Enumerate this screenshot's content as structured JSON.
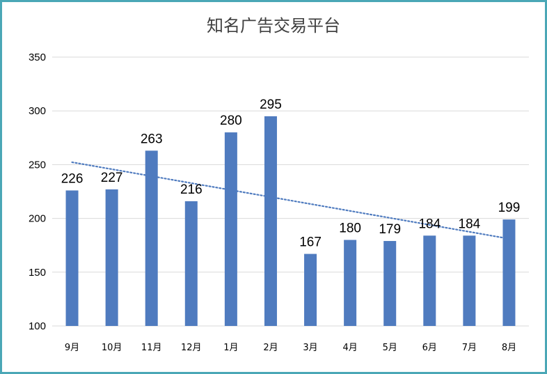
{
  "chart_data": {
    "type": "bar",
    "title": "知名广告交易平台",
    "categories": [
      "9月",
      "10月",
      "11月",
      "12月",
      "1月",
      "2月",
      "3月",
      "4月",
      "5月",
      "6月",
      "7月",
      "8月"
    ],
    "values": [
      226,
      227,
      263,
      216,
      280,
      295,
      167,
      180,
      179,
      184,
      184,
      199
    ],
    "ylim": [
      100,
      350
    ],
    "yticks": [
      "100",
      "150",
      "200",
      "250",
      "300",
      "350"
    ],
    "grid": true,
    "trendline": {
      "type": "linear",
      "style": "dotted"
    },
    "colors": {
      "bar": "#4f7bbf",
      "trendline": "#4f7bbf",
      "grid": "#d9d9d9",
      "border": "#4aa7b6"
    }
  }
}
